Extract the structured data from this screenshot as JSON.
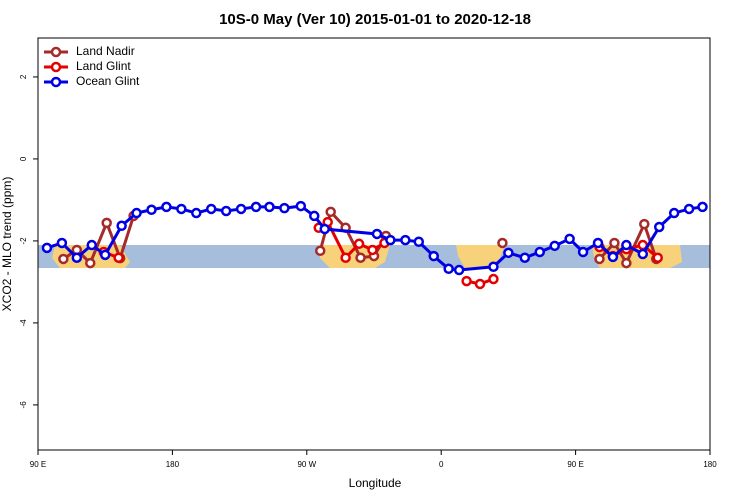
{
  "chart_data": {
    "type": "line",
    "title": "10S-0 May (Ver 10)   2015-01-01 to 2020-12-18",
    "x_label": "Longitude",
    "y_label": "XCO2 - MLO trend (ppm)",
    "xlim": [
      90,
      540
    ],
    "ylim": [
      -7.1,
      2.95
    ],
    "xticks": [
      {
        "value": 90,
        "label": "90 E"
      },
      {
        "value": 180,
        "label": "180"
      },
      {
        "value": 270,
        "label": "90 W"
      },
      {
        "value": 360,
        "label": "0"
      },
      {
        "value": 450,
        "label": "90 E"
      },
      {
        "value": 540,
        "label": "180"
      }
    ],
    "yticks": [
      -6,
      -4,
      -2,
      0,
      2
    ],
    "legend": "top-left",
    "series": [
      {
        "name": "Land Nadir",
        "color": "#a52a2a",
        "x": [
          107,
          116,
          125,
          136,
          145,
          154,
          null,
          279,
          286,
          296,
          306,
          315,
          323,
          null,
          401,
          null,
          466,
          476,
          484,
          496,
          504
        ],
        "values": [
          -2.44,
          -2.22,
          -2.54,
          -1.56,
          -2.42,
          -1.39,
          null,
          -2.24,
          -1.29,
          -1.68,
          -2.41,
          -2.37,
          -1.88,
          null,
          -2.05,
          null,
          -2.44,
          -2.05,
          -2.54,
          -1.59,
          -2.44
        ]
      },
      {
        "name": "Land Glint",
        "color": "#e50000",
        "x": [
          134,
          144,
          null,
          278,
          284,
          296,
          305,
          314,
          322,
          null,
          377,
          386,
          395,
          null,
          466,
          475,
          484,
          495,
          505
        ],
        "values": [
          -2.27,
          -2.41,
          null,
          -1.68,
          -1.54,
          -2.41,
          -2.07,
          -2.22,
          -2.05,
          null,
          -2.98,
          -3.05,
          -2.93,
          null,
          -2.15,
          -2.37,
          -2.2,
          -2.1,
          -2.41
        ]
      },
      {
        "name": "Ocean Glint",
        "color": "#0000e5",
        "x": [
          96,
          106,
          116,
          126,
          135,
          146,
          156,
          166,
          176,
          186,
          196,
          206,
          216,
          226,
          236,
          245,
          255,
          266,
          275,
          282,
          317,
          326,
          336,
          345,
          355,
          365,
          372,
          395,
          405,
          416,
          426,
          436,
          446,
          455,
          465,
          475,
          484,
          495,
          506,
          516,
          526,
          535
        ],
        "values": [
          -2.17,
          -2.05,
          -2.41,
          -2.1,
          -2.34,
          -1.63,
          -1.32,
          -1.24,
          -1.17,
          -1.22,
          -1.32,
          -1.22,
          -1.27,
          -1.22,
          -1.17,
          -1.17,
          -1.2,
          -1.15,
          -1.39,
          -1.71,
          -1.83,
          -1.98,
          -1.98,
          -2.02,
          -2.37,
          -2.68,
          -2.71,
          -2.63,
          -2.29,
          -2.41,
          -2.27,
          -2.12,
          -1.95,
          -2.27,
          -2.05,
          -2.39,
          -2.1,
          -2.32,
          -1.66,
          -1.32,
          -1.22,
          -1.17
        ]
      }
    ]
  }
}
